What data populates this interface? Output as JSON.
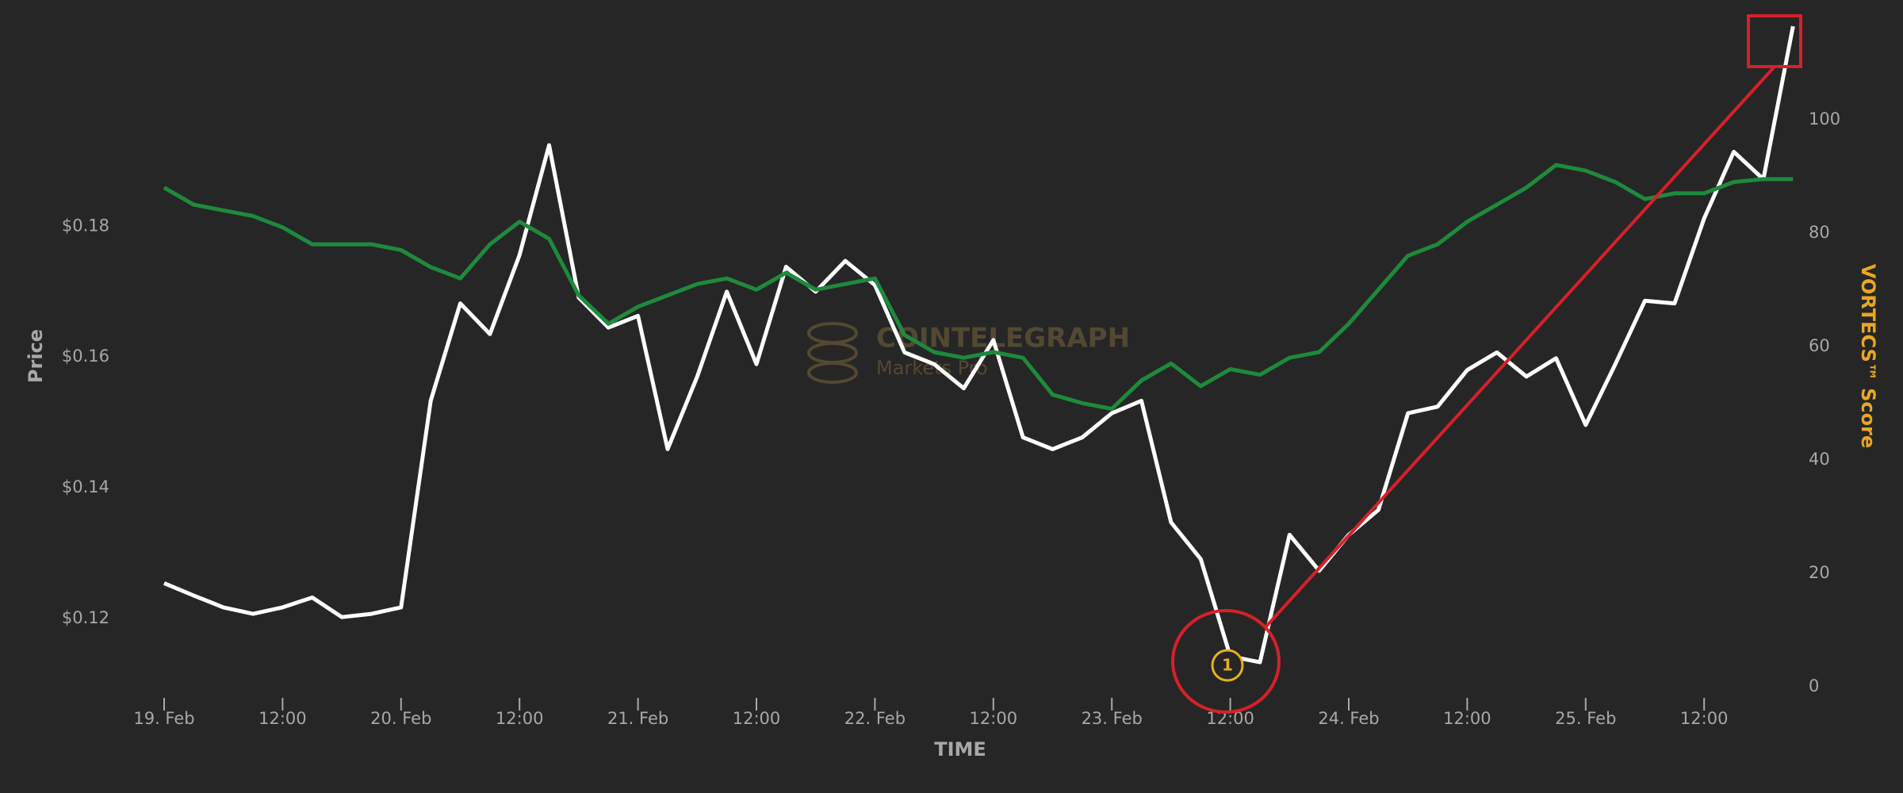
{
  "chart_data": {
    "type": "line",
    "x_label": "TIME",
    "y_label": "Price",
    "y2_label": "VORTECS™ Score",
    "annotation": "1",
    "watermark": [
      "COINTELEGRAPH",
      "Markets Pro"
    ],
    "categories": [
      "19. Feb",
      null,
      null,
      null,
      "12:00",
      null,
      null,
      null,
      "20. Feb",
      null,
      null,
      null,
      "12:00",
      null,
      null,
      null,
      "21. Feb",
      null,
      null,
      null,
      "12:00",
      null,
      null,
      null,
      "22. Feb",
      null,
      null,
      null,
      "12:00",
      null,
      null,
      null,
      "23. Feb",
      null,
      null,
      null,
      "12:00",
      null,
      null,
      null,
      "24. Feb",
      null,
      null,
      null,
      "12:00",
      null,
      null,
      null,
      "25. Feb",
      null,
      null,
      null,
      "12:00",
      null,
      null,
      null
    ],
    "series": [
      {
        "color": "#ffffff",
        "values": [
          0.1254,
          0.1235,
          0.1217,
          0.1207,
          0.1217,
          0.1232,
          0.1202,
          0.1207,
          0.1217,
          0.1533,
          0.1682,
          0.1635,
          0.1756,
          0.1924,
          0.1691,
          0.1645,
          0.1663,
          0.1459,
          0.157,
          0.17,
          0.1589,
          0.1738,
          0.17,
          0.1747,
          0.171,
          0.1607,
          0.1589,
          0.1552,
          0.1626,
          0.1477,
          0.1459,
          0.1477,
          0.1514,
          0.1533,
          0.1347,
          0.1291,
          0.1142,
          0.1133,
          0.1328,
          0.1273,
          0.1328,
          0.1366,
          0.1514,
          0.1524,
          0.158,
          0.1607,
          0.157,
          0.1598,
          0.1496,
          0.1589,
          0.1686,
          0.1682,
          0.1812,
          0.1914,
          0.1872,
          0.2106
        ]
      },
      {
        "color": "#1e8a3c",
        "axis": "y2",
        "values": [
          88,
          85,
          84,
          83,
          81,
          78,
          78,
          78,
          77,
          74,
          72,
          78,
          82,
          79,
          69,
          64,
          67,
          69,
          71,
          72,
          70,
          73,
          70,
          71,
          72,
          62,
          59,
          58,
          59,
          58,
          51.5,
          50,
          49,
          54,
          57,
          53,
          56,
          55,
          58,
          59,
          64,
          70,
          76,
          78,
          82,
          85,
          88,
          92,
          91,
          89,
          86,
          87,
          87,
          89,
          89.5,
          89.5
        ]
      }
    ],
    "ylim": [
      0.1087,
      0.2128
    ],
    "yticks": [
      {
        "value": 0.12,
        "label": "$0.12"
      },
      {
        "value": 0.14,
        "label": "$0.14"
      },
      {
        "value": 0.16,
        "label": "$0.16"
      },
      {
        "value": 0.18,
        "label": "$0.18"
      }
    ],
    "y2lim": [
      -1,
      119
    ],
    "y2ticks": [
      0,
      20,
      40,
      60,
      80,
      100
    ],
    "grid": false
  }
}
